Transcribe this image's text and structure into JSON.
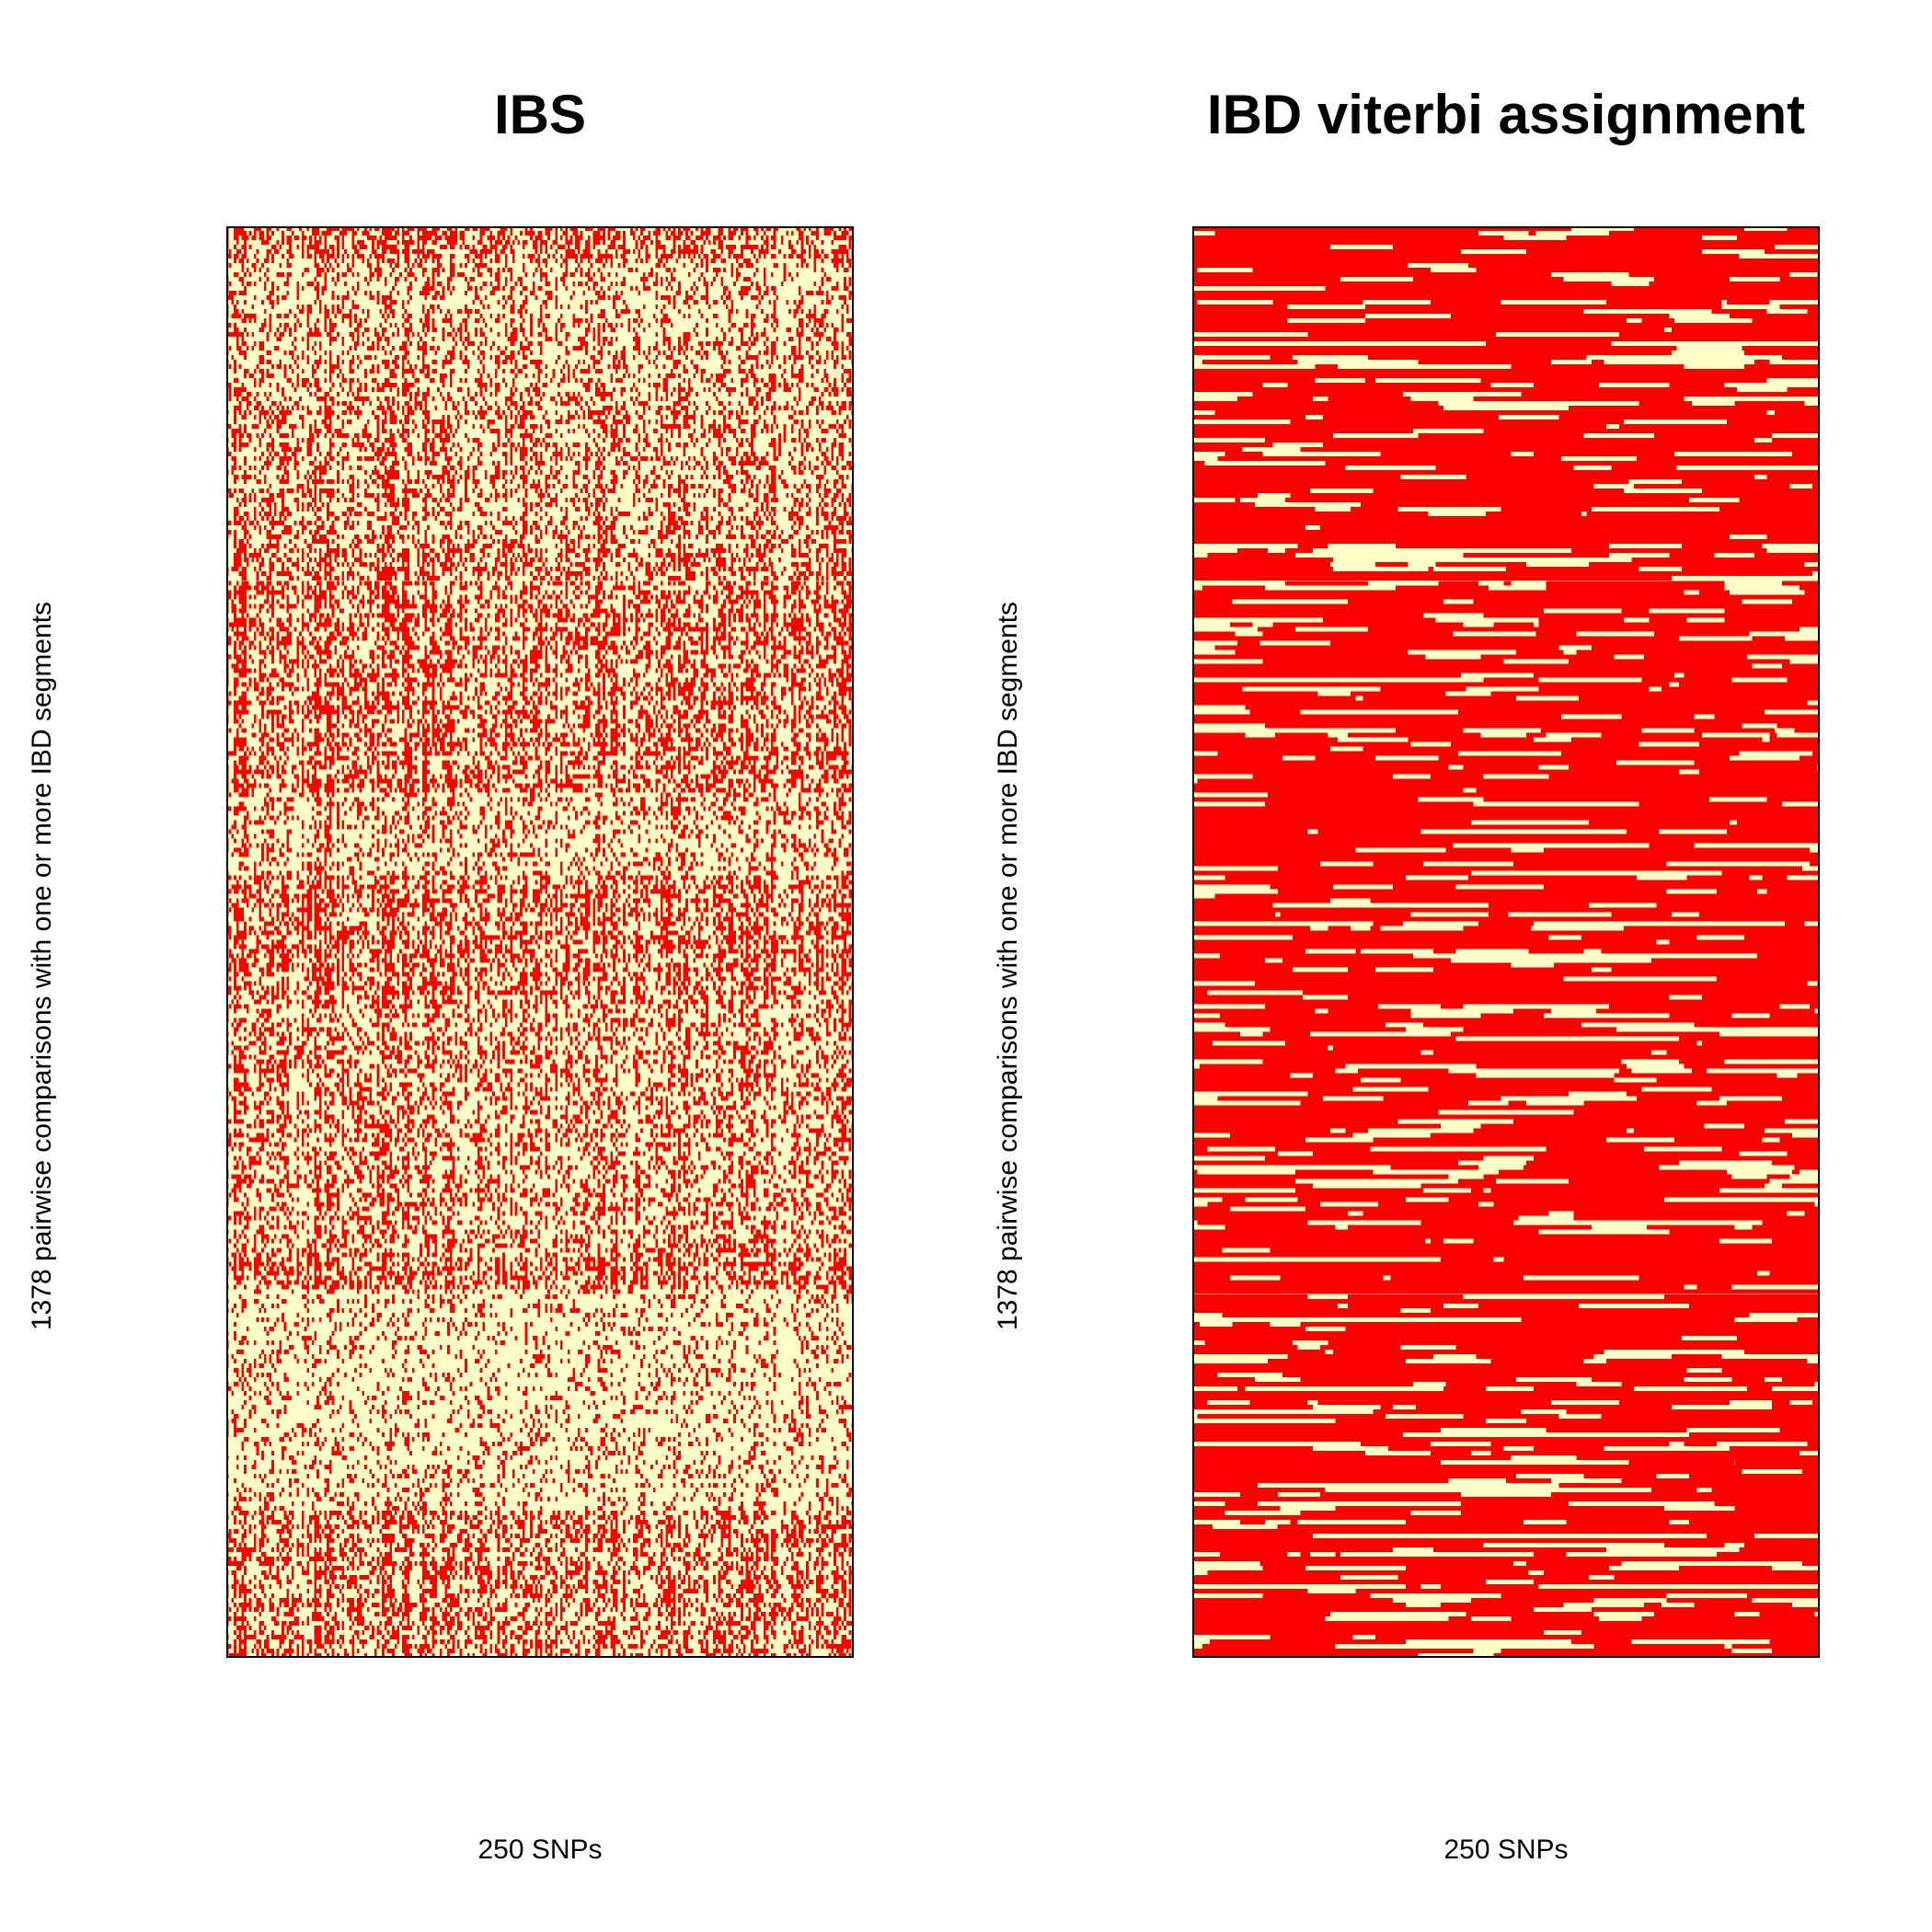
{
  "chart_data": [
    {
      "type": "heatmap",
      "title": "IBS",
      "xlabel": "250 SNPs",
      "ylabel": "1378 pairwise comparisons with one or more IBD segments",
      "n_columns": 250,
      "n_rows": 1378,
      "colors": {
        "low": "#FFFFC8",
        "high": "#FF0000"
      },
      "pattern": "fine"
    },
    {
      "type": "heatmap",
      "title": "IBD viterbi assignment",
      "xlabel": "250 SNPs",
      "ylabel": "1378 pairwise comparisons with one or more IBD segments",
      "n_columns": 250,
      "n_rows": 1378,
      "colors": {
        "low": "#FFFFC8",
        "high": "#FF0000"
      },
      "pattern": "blocky"
    }
  ]
}
